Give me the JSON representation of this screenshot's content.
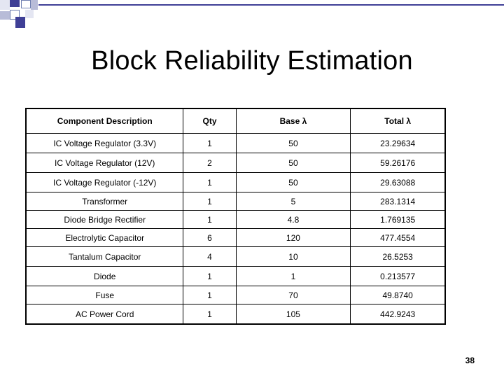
{
  "slide": {
    "title": "Block Reliability Estimation",
    "page_number": "38"
  },
  "table": {
    "headers": [
      "Component Description",
      "Qty",
      "Base λ",
      "Total λ"
    ],
    "rows": [
      {
        "description": "IC Voltage Regulator (3.3V)",
        "qty": "1",
        "base": "50",
        "total": "23.29634"
      },
      {
        "description": "IC Voltage Regulator (12V)",
        "qty": "2",
        "base": "50",
        "total": "59.26176"
      },
      {
        "description": "IC Voltage Regulator (-12V)",
        "qty": "1",
        "base": "50",
        "total": "29.63088"
      },
      {
        "description": "Transformer",
        "qty": "1",
        "base": "5",
        "total": "283.1314"
      },
      {
        "description": "Diode Bridge Rectifier",
        "qty": "1",
        "base": "4.8",
        "total": "1.769135"
      },
      {
        "description": "Electrolytic Capacitor",
        "qty": "6",
        "base": "120",
        "total": "477.4554"
      },
      {
        "description": "Tantalum Capacitor",
        "qty": "4",
        "base": "10",
        "total": "26.5253"
      },
      {
        "description": "Diode",
        "qty": "1",
        "base": "1",
        "total": "0.213577"
      },
      {
        "description": "Fuse",
        "qty": "1",
        "base": "70",
        "total": "49.8740"
      },
      {
        "description": "AC Power Cord",
        "qty": "1",
        "base": "105",
        "total": "442.9243"
      }
    ]
  },
  "colors": {
    "accent": "#3f3f96",
    "accent_light": "#b8bcd8"
  }
}
